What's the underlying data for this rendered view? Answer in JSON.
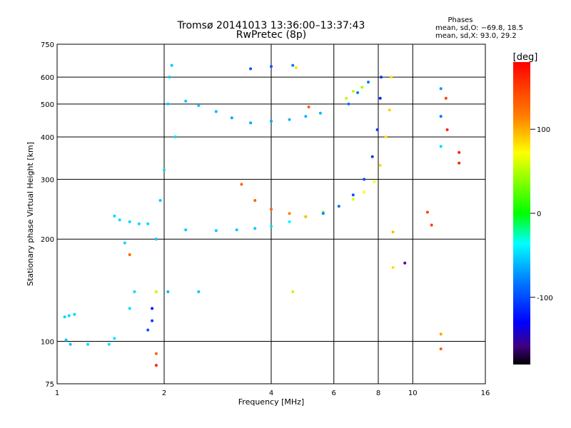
{
  "chart_data": {
    "type": "scatter",
    "title": "Tromsø 20141013 13:36:00–13:37:43",
    "subtitle": "RwPretec (8p)",
    "xlabel": "Frequency [MHz]",
    "ylabel": "Stationary phase Virtual Height [km]",
    "x_scale": "log",
    "y_scale": "log",
    "xlim": [
      1,
      16
    ],
    "ylim": [
      75,
      750
    ],
    "x_ticks": [
      1,
      2,
      4,
      6,
      8,
      10,
      16
    ],
    "y_ticks": [
      75,
      100,
      200,
      300,
      400,
      500,
      600,
      750
    ],
    "grid": true,
    "annotations": {
      "header": "Phases",
      "line1": "mean, sd,O: −69.8, 18.5",
      "line2": "mean, sd,X:  93.0, 29.2"
    },
    "colorbar": {
      "label": "[deg]",
      "ticks": [
        100,
        0,
        -100
      ],
      "range": [
        -180,
        180
      ]
    },
    "series": [
      {
        "points": [
          [
            1.05,
            118,
            -70
          ],
          [
            1.08,
            119,
            -70
          ],
          [
            1.12,
            120,
            -70
          ],
          [
            1.06,
            101,
            -75
          ],
          [
            1.09,
            98,
            -75
          ],
          [
            1.22,
            98,
            -70
          ],
          [
            1.4,
            98,
            -65
          ],
          [
            1.45,
            102,
            -65
          ],
          [
            1.45,
            234,
            -70
          ],
          [
            1.5,
            228,
            -70
          ],
          [
            1.6,
            225,
            -70
          ],
          [
            1.7,
            222,
            -70
          ],
          [
            1.8,
            222,
            -70
          ],
          [
            1.55,
            195,
            -70
          ],
          [
            1.6,
            125,
            -70
          ],
          [
            1.65,
            140,
            -70
          ],
          [
            1.9,
            200,
            -75
          ],
          [
            1.95,
            260,
            -75
          ],
          [
            2.0,
            320,
            -70
          ],
          [
            2.05,
            500,
            -75
          ],
          [
            2.07,
            600,
            -75
          ],
          [
            2.1,
            650,
            -75
          ],
          [
            2.15,
            400,
            -70
          ],
          [
            2.3,
            510,
            -75
          ],
          [
            2.5,
            495,
            -75
          ],
          [
            2.8,
            475,
            -80
          ],
          [
            3.1,
            455,
            -85
          ],
          [
            3.5,
            440,
            -85
          ],
          [
            4.0,
            445,
            -85
          ],
          [
            4.5,
            450,
            -80
          ],
          [
            5.0,
            460,
            -80
          ],
          [
            5.5,
            470,
            -80
          ],
          [
            2.3,
            213,
            -75
          ],
          [
            2.8,
            212,
            -75
          ],
          [
            3.2,
            213,
            -75
          ],
          [
            3.6,
            215,
            -75
          ],
          [
            4.0,
            218,
            -70
          ],
          [
            4.5,
            225,
            -60
          ],
          [
            5.0,
            233,
            30
          ],
          [
            5.6,
            240,
            60
          ],
          [
            6.2,
            250,
            80
          ],
          [
            6.8,
            262,
            90
          ],
          [
            7.3,
            275,
            100
          ],
          [
            7.8,
            295,
            100
          ],
          [
            8.1,
            330,
            110
          ],
          [
            8.4,
            400,
            110
          ],
          [
            8.6,
            480,
            115
          ],
          [
            8.7,
            600,
            110
          ],
          [
            3.3,
            290,
            150
          ],
          [
            3.6,
            260,
            150
          ],
          [
            4.0,
            245,
            150
          ],
          [
            4.5,
            238,
            140
          ],
          [
            5.0,
            233,
            120
          ],
          [
            5.6,
            238,
            -95
          ],
          [
            6.2,
            250,
            -100
          ],
          [
            6.8,
            270,
            -110
          ],
          [
            7.3,
            300,
            -115
          ],
          [
            7.7,
            350,
            -120
          ],
          [
            7.95,
            420,
            -120
          ],
          [
            8.1,
            520,
            -125
          ],
          [
            8.15,
            600,
            -120
          ],
          [
            6.5,
            520,
            80
          ],
          [
            6.8,
            545,
            80
          ],
          [
            7.2,
            560,
            70
          ],
          [
            6.6,
            500,
            -100
          ],
          [
            7.0,
            540,
            -100
          ],
          [
            7.5,
            580,
            -100
          ],
          [
            3.5,
            635,
            -110
          ],
          [
            4.0,
            645,
            -110
          ],
          [
            4.6,
            650,
            -100
          ],
          [
            4.7,
            640,
            110
          ],
          [
            4.6,
            140,
            80
          ],
          [
            5.1,
            490,
            150
          ],
          [
            8.8,
            165,
            110
          ],
          [
            8.8,
            210,
            120
          ],
          [
            9.5,
            170,
            -160
          ],
          [
            11.0,
            240,
            160
          ],
          [
            11.3,
            220,
            160
          ],
          [
            12.0,
            105,
            130
          ],
          [
            12.0,
            95,
            150
          ],
          [
            12.0,
            555,
            -90
          ],
          [
            12.0,
            460,
            -100
          ],
          [
            12.0,
            375,
            -70
          ],
          [
            12.4,
            520,
            160
          ],
          [
            12.5,
            420,
            170
          ],
          [
            13.5,
            360,
            170
          ],
          [
            13.5,
            335,
            170
          ],
          [
            1.9,
            85,
            170
          ],
          [
            1.9,
            92,
            150
          ],
          [
            1.6,
            180,
            150
          ],
          [
            1.9,
            140,
            80
          ],
          [
            1.85,
            125,
            -130
          ],
          [
            1.85,
            115,
            -120
          ],
          [
            1.8,
            108,
            -110
          ],
          [
            2.05,
            140,
            -80
          ],
          [
            2.5,
            140,
            -75
          ]
        ]
      }
    ]
  }
}
